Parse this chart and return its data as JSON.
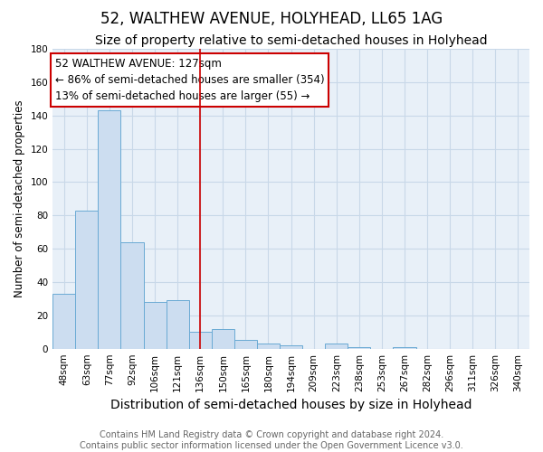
{
  "title": "52, WALTHEW AVENUE, HOLYHEAD, LL65 1AG",
  "subtitle": "Size of property relative to semi-detached houses in Holyhead",
  "xlabel": "Distribution of semi-detached houses by size in Holyhead",
  "ylabel": "Number of semi-detached properties",
  "categories": [
    "48sqm",
    "63sqm",
    "77sqm",
    "92sqm",
    "106sqm",
    "121sqm",
    "136sqm",
    "150sqm",
    "165sqm",
    "180sqm",
    "194sqm",
    "209sqm",
    "223sqm",
    "238sqm",
    "253sqm",
    "267sqm",
    "282sqm",
    "296sqm",
    "311sqm",
    "326sqm",
    "340sqm"
  ],
  "values": [
    33,
    83,
    143,
    64,
    28,
    29,
    10,
    12,
    5,
    3,
    2,
    0,
    3,
    1,
    0,
    1,
    0,
    0,
    0,
    0,
    0
  ],
  "bar_color": "#ccddf0",
  "bar_edgecolor": "#6aaad4",
  "property_line_x": 6.0,
  "annotation_text_line1": "52 WALTHEW AVENUE: 127sqm",
  "annotation_text_line2": "← 86% of semi-detached houses are smaller (354)",
  "annotation_text_line3": "13% of semi-detached houses are larger (55) →",
  "annotation_box_color": "#ffffff",
  "annotation_box_edgecolor": "#cc0000",
  "ylim": [
    0,
    180
  ],
  "yticks": [
    0,
    20,
    40,
    60,
    80,
    100,
    120,
    140,
    160,
    180
  ],
  "footer1": "Contains HM Land Registry data © Crown copyright and database right 2024.",
  "footer2": "Contains public sector information licensed under the Open Government Licence v3.0.",
  "title_fontsize": 12,
  "subtitle_fontsize": 10,
  "xlabel_fontsize": 10,
  "ylabel_fontsize": 8.5,
  "tick_fontsize": 7.5,
  "annotation_fontsize": 8.5,
  "footer_fontsize": 7,
  "grid_color": "#c8d8e8",
  "bg_color": "#e8f0f8"
}
